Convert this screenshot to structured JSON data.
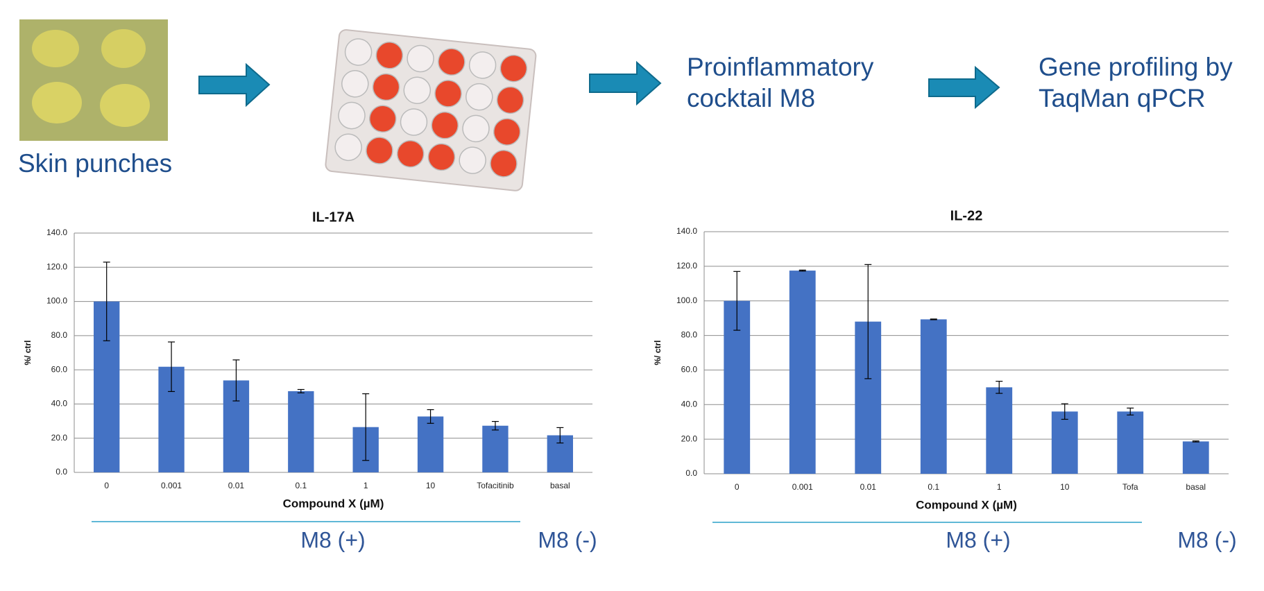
{
  "flow": {
    "source": "Skin punches",
    "treatment": [
      "Proinflammatory",
      "cocktail M8"
    ],
    "readout": [
      "Gene profiling by",
      "TaqMan qPCR"
    ]
  },
  "chart_data": [
    {
      "type": "bar",
      "title": "IL-17A",
      "x_label": "Compound X (µM)",
      "y_label": "%/ ctrl",
      "categories": [
        "0",
        "0.001",
        "0.01",
        "0.1",
        "1",
        "10",
        "Tofacitinib",
        "basal"
      ],
      "values": [
        100,
        61.8,
        53.8,
        47.5,
        26.5,
        32.7,
        27.3,
        21.7
      ],
      "errors": [
        23,
        14.5,
        12,
        1,
        19.5,
        4,
        2.5,
        4.5
      ],
      "color": "#4472c4",
      "grid": true,
      "ylim": [
        0,
        140
      ],
      "yticks": [
        {
          "value": 0,
          "label": "0.0"
        },
        {
          "value": 20,
          "label": "20.0"
        },
        {
          "value": 40,
          "label": "40.0"
        },
        {
          "value": 60,
          "label": "60.0"
        },
        {
          "value": 80,
          "label": "80.0"
        },
        {
          "value": 100,
          "label": "100.0"
        },
        {
          "value": 120,
          "label": "120.0"
        },
        {
          "value": 140,
          "label": "140.0"
        }
      ],
      "annotations": [
        "M8 (+)",
        "M8 (-)"
      ]
    },
    {
      "type": "bar",
      "title": "IL-22",
      "x_label": "Compound X (µM)",
      "y_label": "%/ ctrl",
      "categories": [
        "0",
        "0.001",
        "0.01",
        "0.1",
        "1",
        "10",
        "Tofa",
        "basal"
      ],
      "values": [
        100,
        117.5,
        88,
        89.3,
        50,
        36,
        36,
        18.7
      ],
      "errors": [
        17,
        0.3,
        33,
        0.2,
        3.5,
        4.5,
        2,
        0.3
      ],
      "color": "#4472c4",
      "grid": true,
      "ylim": [
        0,
        140
      ],
      "yticks": [
        {
          "value": 0,
          "label": "0.0"
        },
        {
          "value": 20,
          "label": "20.0"
        },
        {
          "value": 40,
          "label": "40.0"
        },
        {
          "value": 60,
          "label": "60.0"
        },
        {
          "value": 80,
          "label": "80.0"
        },
        {
          "value": 100,
          "label": "100.0"
        },
        {
          "value": 120,
          "label": "120.0"
        },
        {
          "value": 140,
          "label": "140.0"
        }
      ],
      "annotations": [
        "M8 (+)",
        "M8 (-)"
      ]
    }
  ]
}
